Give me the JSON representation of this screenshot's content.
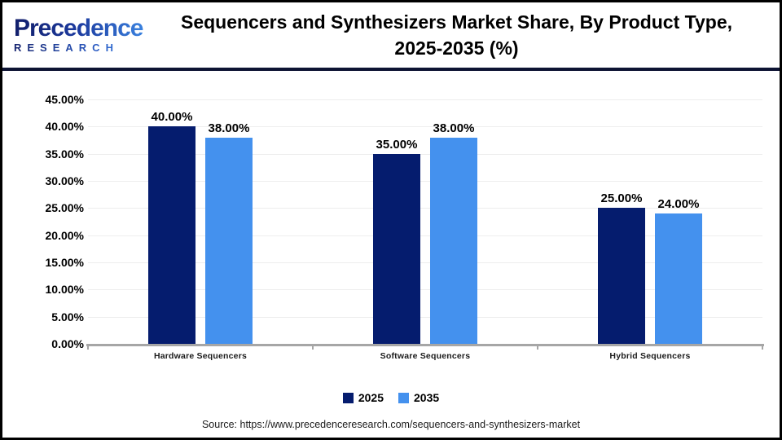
{
  "header": {
    "logo": {
      "line1": "Precedence",
      "line2": "RESEARCH"
    },
    "title_line1": "Sequencers and Synthesizers Market Share, By Product Type,",
    "title_line2": "2025-2035 (%)"
  },
  "chart_data": {
    "type": "bar",
    "title": "Sequencers and Synthesizers Market Share, By Product Type, 2025-2035 (%)",
    "categories": [
      "Hardware Sequencers",
      "Software Sequencers",
      "Hybrid Sequencers"
    ],
    "series": [
      {
        "name": "2025",
        "color": "#051C6E",
        "values": [
          40,
          35,
          25
        ],
        "labels": [
          "40.00%",
          "35.00%",
          "25.00%"
        ]
      },
      {
        "name": "2035",
        "color": "#4491EE",
        "values": [
          38,
          38,
          24
        ],
        "labels": [
          "38.00%",
          "38.00%",
          "24.00%"
        ]
      }
    ],
    "ylim": [
      0,
      45
    ],
    "ytick_step": 5,
    "yticks": [
      "45.00%",
      "40.00%",
      "35.00%",
      "30.00%",
      "25.00%",
      "20.00%",
      "15.00%",
      "10.00%",
      "5.00%",
      "0.00%"
    ],
    "grid": true,
    "legend_position": "bottom"
  },
  "legend": [
    {
      "label": "2025",
      "color": "#051C6E"
    },
    {
      "label": "2035",
      "color": "#4491EE"
    }
  ],
  "source": "Source: https://www.precedenceresearch.com/sequencers-and-synthesizers-market",
  "colors": {
    "bar_2025": "#051C6E",
    "bar_2035": "#4491EE",
    "header_divider": "#0d1333",
    "axis_line": "#a6a6a6",
    "frame_border": "#000000"
  }
}
